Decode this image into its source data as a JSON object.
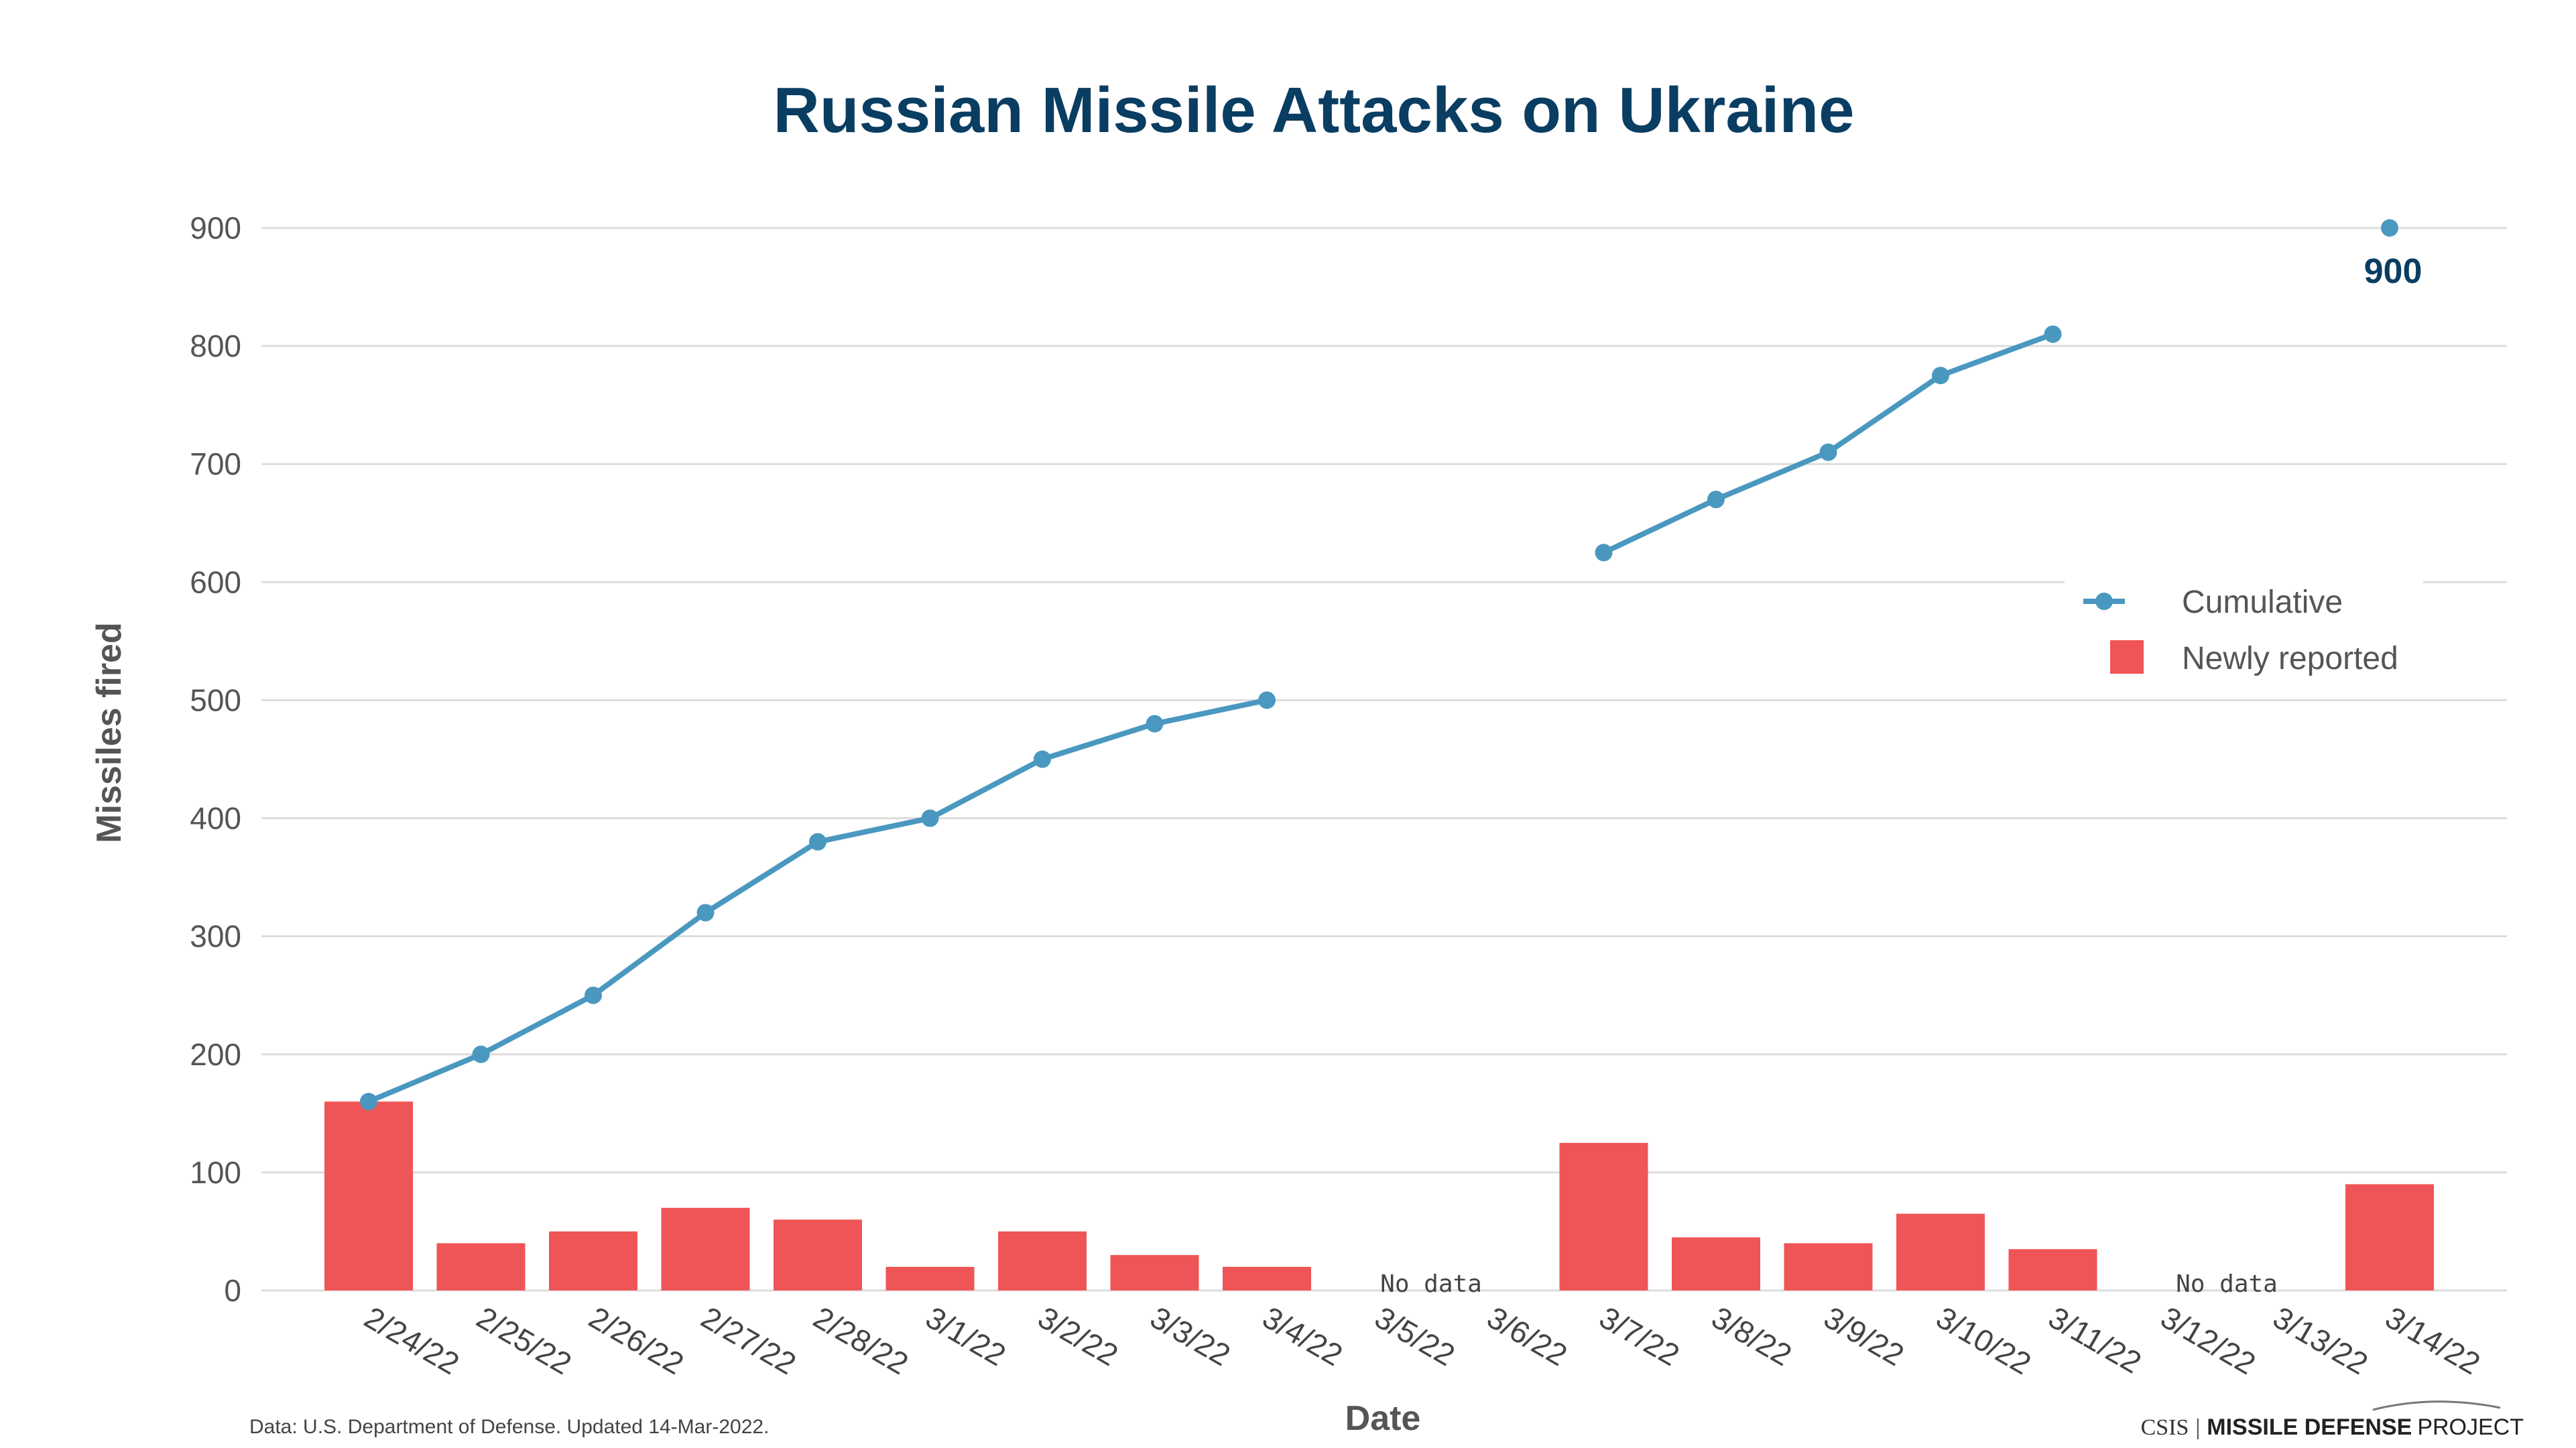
{
  "chart_data": {
    "type": "bar",
    "title": "Russian Missile Attacks on Ukraine",
    "xlabel": "Date",
    "ylabel": "Missiles fired",
    "ylim": [
      0,
      900
    ],
    "yticks": [
      0,
      100,
      200,
      300,
      400,
      500,
      600,
      700,
      800,
      900
    ],
    "grid": true,
    "legend_position": "right",
    "categories": [
      "2/24/22",
      "2/25/22",
      "2/26/22",
      "2/27/22",
      "2/28/22",
      "3/1/22",
      "3/2/22",
      "3/3/22",
      "3/4/22",
      "3/5/22",
      "3/6/22",
      "3/7/22",
      "3/8/22",
      "3/9/22",
      "3/10/22",
      "3/11/22",
      "3/12/22",
      "3/13/22",
      "3/14/22"
    ],
    "series": [
      {
        "name": "Cumulative",
        "type": "line",
        "color": "#4a98c0",
        "values": [
          160,
          200,
          250,
          320,
          380,
          400,
          450,
          480,
          500,
          null,
          null,
          625,
          670,
          710,
          775,
          810,
          null,
          null,
          900
        ]
      },
      {
        "name": "Newly reported",
        "type": "bar",
        "color": "#ef5556",
        "values": [
          160,
          40,
          50,
          70,
          60,
          20,
          50,
          30,
          20,
          null,
          null,
          125,
          45,
          40,
          65,
          35,
          null,
          null,
          90
        ]
      }
    ],
    "annotations": [
      {
        "text": "No data",
        "category": "3/5/22 – 3/6/22"
      },
      {
        "text": "No data",
        "category": "3/12/22 – 3/13/22"
      },
      {
        "text": "900",
        "category": "3/14/22"
      }
    ],
    "source": "Data: U.S. Department of Defense. Updated 14-Mar-2022.",
    "branding": {
      "org": "CSIS",
      "separator": "|",
      "project_bold": "MISSILE DEFENSE",
      "project": "PROJECT"
    }
  }
}
